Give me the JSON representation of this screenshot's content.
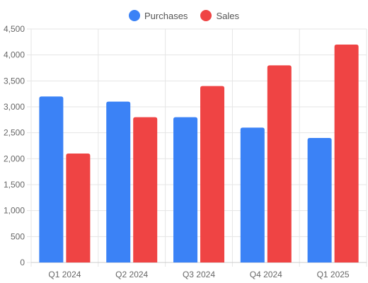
{
  "chart_data": {
    "type": "bar",
    "categories": [
      "Q1 2024",
      "Q2 2024",
      "Q3 2024",
      "Q4 2024",
      "Q1 2025"
    ],
    "series": [
      {
        "name": "Purchases",
        "color": "#3b82f6",
        "values": [
          3200,
          3100,
          2800,
          2600,
          2400
        ]
      },
      {
        "name": "Sales",
        "color": "#ef4444",
        "values": [
          2100,
          2800,
          3400,
          3800,
          4200
        ]
      }
    ],
    "ylim": [
      0,
      4500
    ],
    "yticks": [
      0,
      500,
      1000,
      1500,
      2000,
      2500,
      3000,
      3500,
      4000,
      4500
    ],
    "ytick_labels": [
      "0",
      "500",
      "1,000",
      "1,500",
      "2,000",
      "2,500",
      "3,000",
      "3,500",
      "4,000",
      "4,500"
    ],
    "grid": true,
    "legend_position": "top-center",
    "title": "",
    "xlabel": "",
    "ylabel": ""
  }
}
